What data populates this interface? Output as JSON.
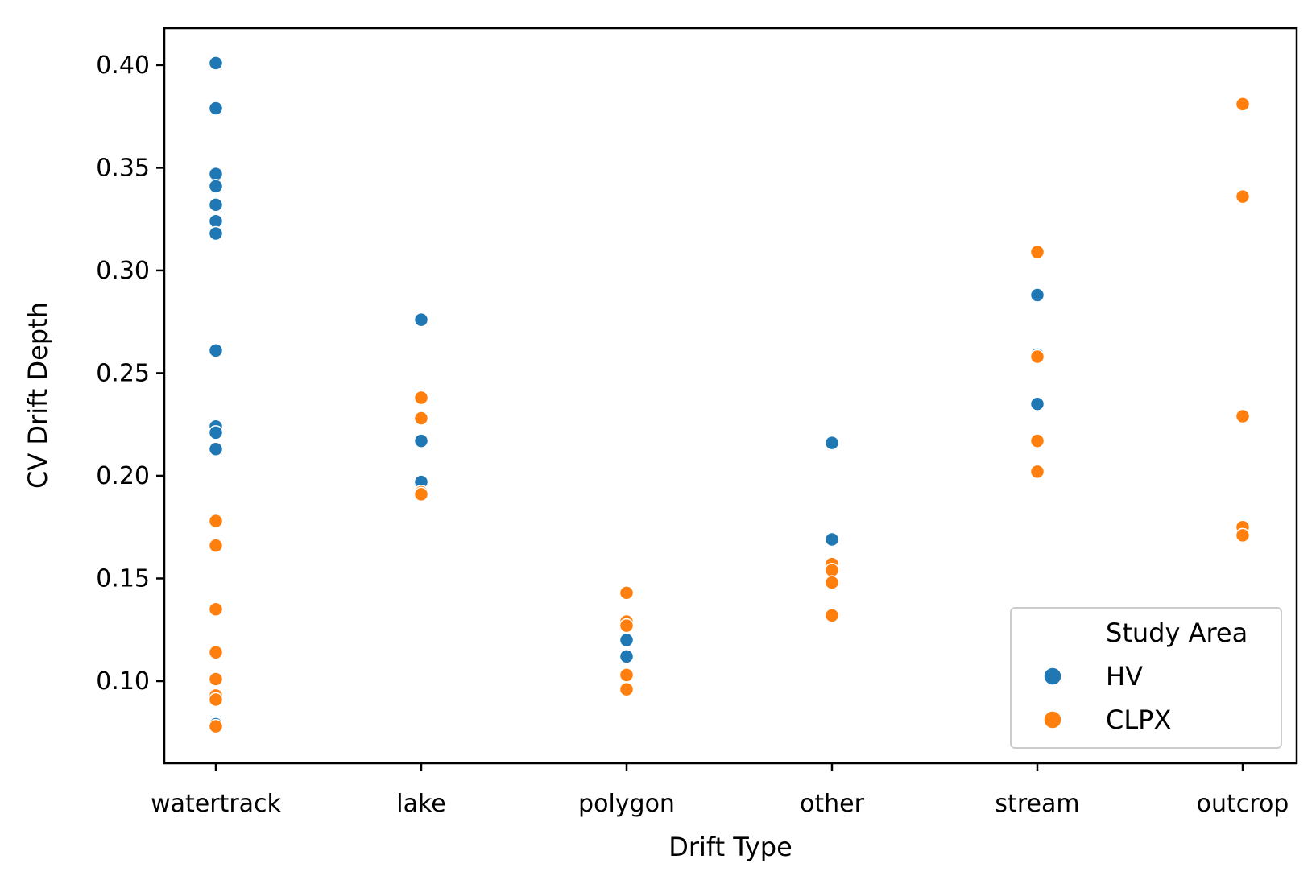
{
  "chart_data": {
    "type": "scatter",
    "title": "",
    "xlabel": "Drift Type",
    "ylabel": "CV Drift Depth",
    "categories": [
      "watertrack",
      "lake",
      "polygon",
      "other",
      "stream",
      "outcrop"
    ],
    "ylim": [
      0.06,
      0.418
    ],
    "yticks": [
      "0.10",
      "0.15",
      "0.20",
      "0.25",
      "0.30",
      "0.35",
      "0.40"
    ],
    "grid": false,
    "legend": {
      "title": "Study Area",
      "position": "lower-right"
    },
    "series": [
      {
        "name": "HV",
        "color": "#1f77b4",
        "points": [
          {
            "x": "watertrack",
            "y": 0.401
          },
          {
            "x": "watertrack",
            "y": 0.379
          },
          {
            "x": "watertrack",
            "y": 0.347
          },
          {
            "x": "watertrack",
            "y": 0.341
          },
          {
            "x": "watertrack",
            "y": 0.332
          },
          {
            "x": "watertrack",
            "y": 0.324
          },
          {
            "x": "watertrack",
            "y": 0.318
          },
          {
            "x": "watertrack",
            "y": 0.261
          },
          {
            "x": "watertrack",
            "y": 0.224
          },
          {
            "x": "watertrack",
            "y": 0.221
          },
          {
            "x": "watertrack",
            "y": 0.213
          },
          {
            "x": "watertrack",
            "y": 0.079
          },
          {
            "x": "lake",
            "y": 0.276
          },
          {
            "x": "lake",
            "y": 0.217
          },
          {
            "x": "lake",
            "y": 0.197
          },
          {
            "x": "polygon",
            "y": 0.12
          },
          {
            "x": "polygon",
            "y": 0.112
          },
          {
            "x": "other",
            "y": 0.216
          },
          {
            "x": "other",
            "y": 0.169
          },
          {
            "x": "stream",
            "y": 0.288
          },
          {
            "x": "stream",
            "y": 0.259
          },
          {
            "x": "stream",
            "y": 0.235
          }
        ]
      },
      {
        "name": "CLPX",
        "color": "#ff7f0e",
        "points": [
          {
            "x": "watertrack",
            "y": 0.178
          },
          {
            "x": "watertrack",
            "y": 0.166
          },
          {
            "x": "watertrack",
            "y": 0.135
          },
          {
            "x": "watertrack",
            "y": 0.114
          },
          {
            "x": "watertrack",
            "y": 0.101
          },
          {
            "x": "watertrack",
            "y": 0.093
          },
          {
            "x": "watertrack",
            "y": 0.091
          },
          {
            "x": "watertrack",
            "y": 0.078
          },
          {
            "x": "lake",
            "y": 0.238
          },
          {
            "x": "lake",
            "y": 0.228
          },
          {
            "x": "lake",
            "y": 0.192
          },
          {
            "x": "lake",
            "y": 0.191
          },
          {
            "x": "polygon",
            "y": 0.143
          },
          {
            "x": "polygon",
            "y": 0.129
          },
          {
            "x": "polygon",
            "y": 0.127
          },
          {
            "x": "polygon",
            "y": 0.103
          },
          {
            "x": "polygon",
            "y": 0.096
          },
          {
            "x": "other",
            "y": 0.157
          },
          {
            "x": "other",
            "y": 0.154
          },
          {
            "x": "other",
            "y": 0.148
          },
          {
            "x": "other",
            "y": 0.132
          },
          {
            "x": "stream",
            "y": 0.309
          },
          {
            "x": "stream",
            "y": 0.258
          },
          {
            "x": "stream",
            "y": 0.217
          },
          {
            "x": "stream",
            "y": 0.202
          },
          {
            "x": "outcrop",
            "y": 0.381
          },
          {
            "x": "outcrop",
            "y": 0.336
          },
          {
            "x": "outcrop",
            "y": 0.229
          },
          {
            "x": "outcrop",
            "y": 0.175
          },
          {
            "x": "outcrop",
            "y": 0.171
          }
        ]
      }
    ]
  }
}
